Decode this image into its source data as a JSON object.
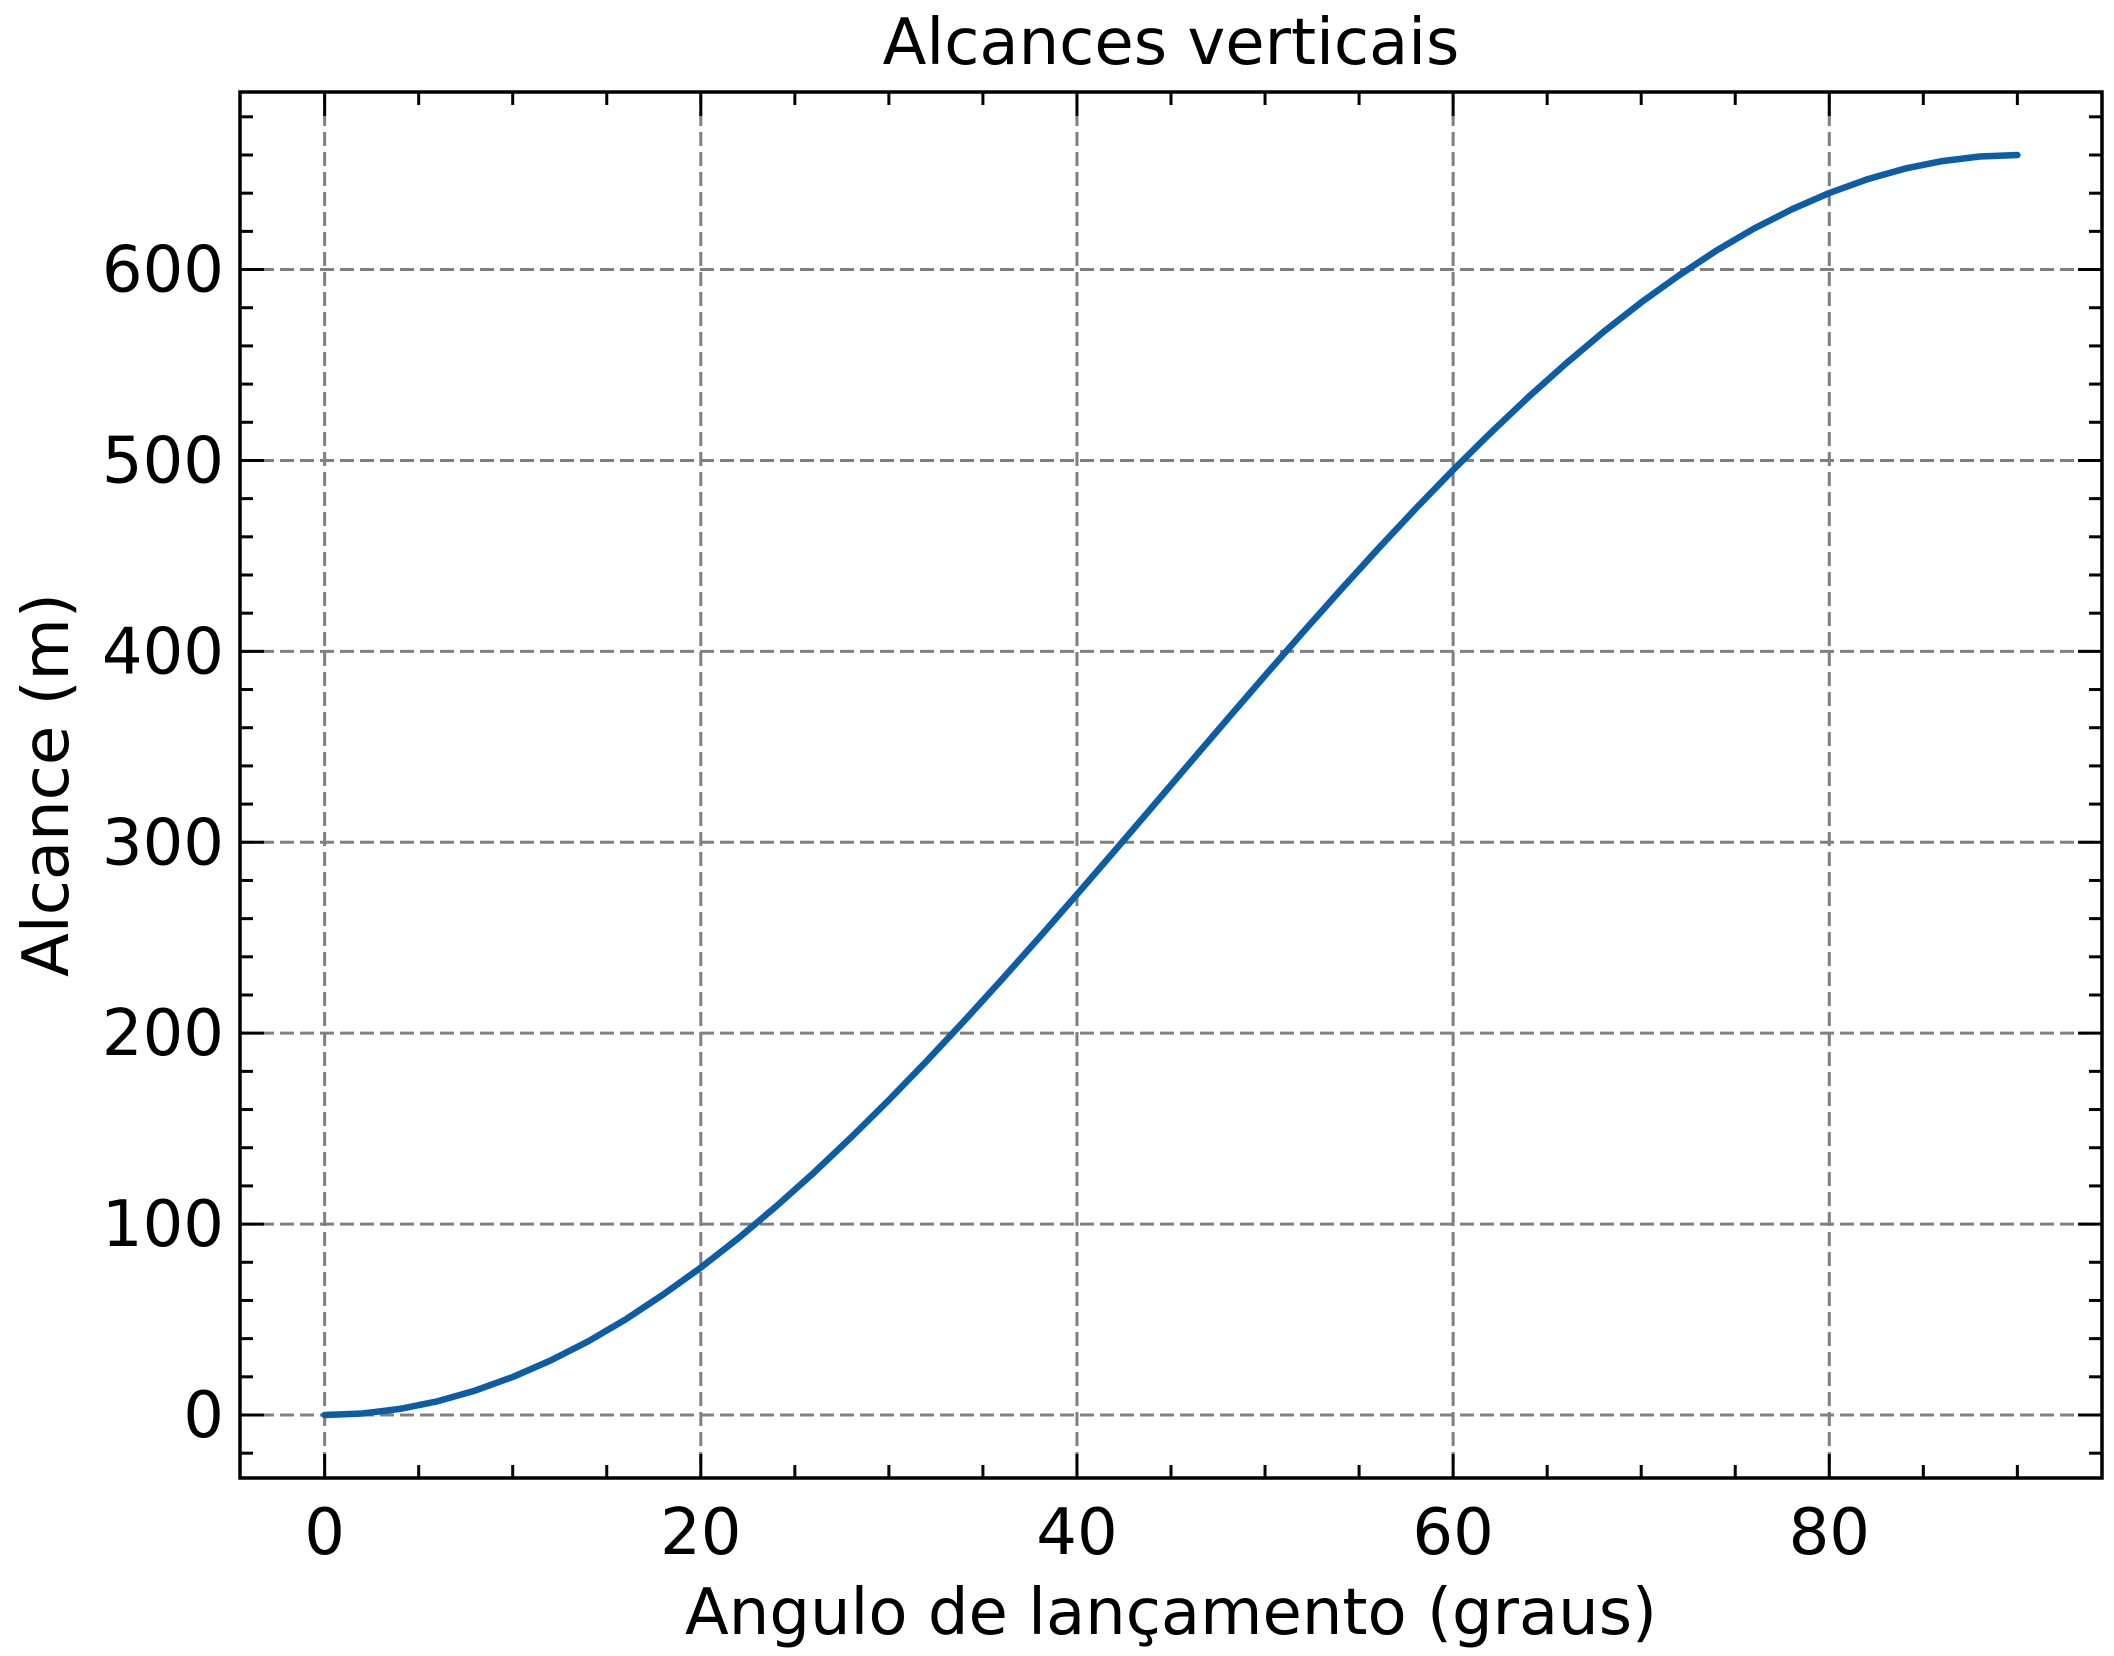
{
  "chart_data": {
    "type": "line",
    "title": "Alcances verticais",
    "xlabel": "Angulo de lançamento (graus)",
    "ylabel": "Alcance (m)",
    "xlim": [
      -4.5,
      94.5
    ],
    "ylim": [
      -33,
      693
    ],
    "xticks": [
      0,
      20,
      40,
      60,
      80
    ],
    "xtick_labels": [
      "0",
      "20",
      "40",
      "60",
      "80"
    ],
    "yticks": [
      0,
      100,
      200,
      300,
      400,
      500,
      600
    ],
    "ytick_labels": [
      "0",
      "100",
      "200",
      "300",
      "400",
      "500",
      "600"
    ],
    "x_minor_step": 5,
    "y_minor_step": 20,
    "grid": true,
    "colors": {
      "series": "#0C5DA5",
      "grid": "#808080",
      "axes": "#000000"
    },
    "series": [
      {
        "x": [
          0,
          2,
          4,
          6,
          8,
          10,
          12,
          14,
          16,
          18,
          20,
          22,
          24,
          26,
          28,
          30,
          32,
          34,
          36,
          38,
          40,
          42,
          44,
          46,
          48,
          50,
          52,
          54,
          56,
          58,
          60,
          62,
          64,
          66,
          68,
          70,
          72,
          74,
          76,
          78,
          80,
          82,
          84,
          86,
          88,
          90
        ],
        "y": [
          0.0,
          0.8,
          3.2,
          7.2,
          12.8,
          19.9,
          28.5,
          38.5,
          50.1,
          63.1,
          77.2,
          92.6,
          109.2,
          126.8,
          145.5,
          165.0,
          185.3,
          206.4,
          228.0,
          250.1,
          272.7,
          295.5,
          318.5,
          341.5,
          364.5,
          387.3,
          409.9,
          432.0,
          453.6,
          474.7,
          495.0,
          514.5,
          533.2,
          550.8,
          567.4,
          582.8,
          596.9,
          609.9,
          621.5,
          631.5,
          640.1,
          647.2,
          652.8,
          656.8,
          659.2,
          660.0
        ]
      }
    ]
  }
}
